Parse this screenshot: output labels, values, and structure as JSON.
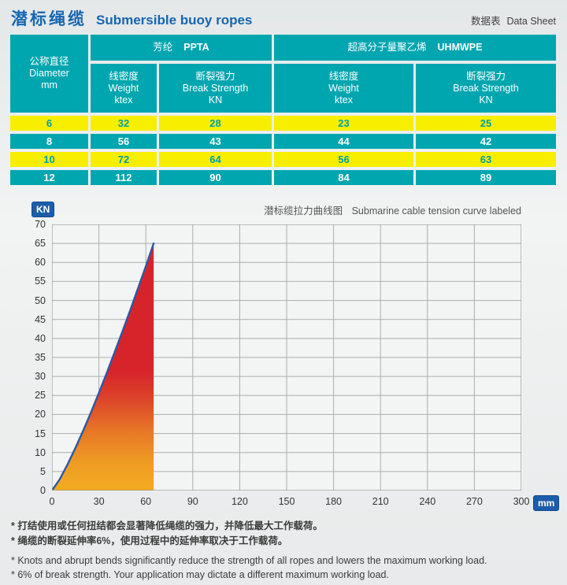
{
  "header": {
    "title_zh": "潜标绳缆",
    "title_en": "Submersible buoy ropes",
    "right_zh": "数据表",
    "right_en": "Data Sheet"
  },
  "colors": {
    "brand_blue": "#1467b3",
    "teal": "#00a6af",
    "row_yellow": "#f7ee00",
    "yellow_row_text": "#00a0aa",
    "badge_blue": "#1b5dab",
    "curve_blue": "#2b58a7",
    "fill_top_red": "#d6232b",
    "fill_bottom_orange": "#f3ac1f"
  },
  "tables": {
    "diameter_header": {
      "zh": "公称直径",
      "en": "Diameter",
      "unit": "mm"
    },
    "ppta": {
      "group_zh": "芳纶",
      "group_en": "PPTA",
      "col_weight": {
        "zh": "线密度",
        "en": "Weight",
        "unit": "ktex"
      },
      "col_break": {
        "zh": "断裂强力",
        "en": "Break Strength",
        "unit": "KN"
      }
    },
    "uhmwpe": {
      "group_zh": "超高分子量聚乙烯",
      "group_en": "UHMWPE",
      "col_weight": {
        "zh": "线密度",
        "en": "Weight",
        "unit": "ktex"
      },
      "col_break": {
        "zh": "断裂强力",
        "en": "Break Strength",
        "unit": "KN"
      }
    },
    "rows": [
      {
        "d": "6",
        "pw": "32",
        "pb": "28",
        "uw": "23",
        "ub": "25"
      },
      {
        "d": "8",
        "pw": "56",
        "pb": "43",
        "uw": "44",
        "ub": "42"
      },
      {
        "d": "10",
        "pw": "72",
        "pb": "64",
        "uw": "56",
        "ub": "63"
      },
      {
        "d": "12",
        "pw": "112",
        "pb": "90",
        "uw": "84",
        "ub": "89"
      }
    ]
  },
  "chart_data": {
    "type": "area",
    "title_zh": "潜标缆拉力曲线图",
    "title_en": "Submarine cable tension curve labeled",
    "y_unit": "KN",
    "x_unit": "mm",
    "xlim": [
      0,
      300
    ],
    "ylim": [
      0,
      70
    ],
    "x_ticks": [
      0,
      30,
      60,
      90,
      120,
      150,
      180,
      210,
      240,
      270,
      300
    ],
    "y_ticks": [
      0,
      5,
      10,
      15,
      20,
      25,
      30,
      35,
      40,
      45,
      50,
      55,
      60,
      65,
      70
    ],
    "grid": true,
    "legend": null,
    "curve": {
      "x": [
        0,
        5,
        10,
        15,
        20,
        25,
        30,
        35,
        40,
        45,
        50,
        55,
        60,
        65
      ],
      "y": [
        0,
        3.0,
        6.9,
        11.2,
        15.8,
        20.6,
        25.7,
        30.9,
        36.3,
        41.8,
        47.4,
        53.2,
        59.0,
        65
      ]
    },
    "peak": {
      "x": 65,
      "y": 65
    },
    "fill_right_edge_x": 65
  },
  "notes": {
    "zh1": "* 打结使用或任何扭结都会显著降低绳缆的强力，并降低最大工作载荷。",
    "zh2": "* 绳缆的断裂延伸率6%，使用过程中的延伸率取决于工作载荷。",
    "en1": "* Knots and abrupt bends significantly reduce the strength of all ropes and lowers the maximum working load.",
    "en2": "* 6% of break strength. Your application may dictate a different maximum working load."
  }
}
